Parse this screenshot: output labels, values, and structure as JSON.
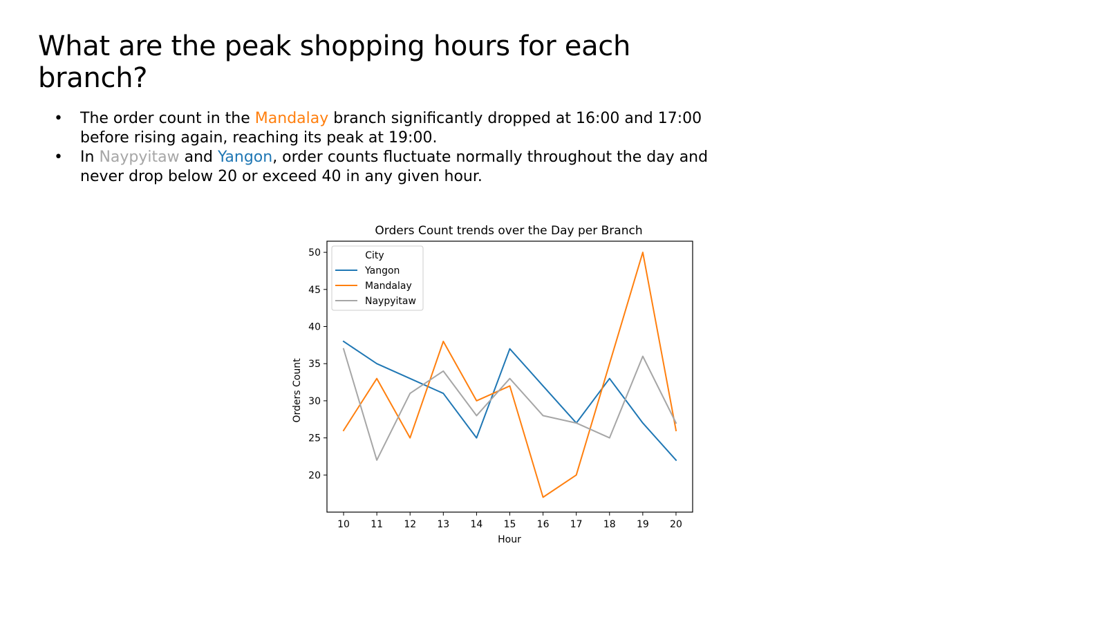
{
  "slide": {
    "title": "What are the peak shopping hours for each branch?",
    "bullets": [
      {
        "marker": "•",
        "before": "The order count in the ",
        "highlight": "Mandalay",
        "after": " branch significantly dropped at 16:00 and 17:00 before rising again, reaching its peak at 19:00."
      },
      {
        "marker": "•",
        "before": "In ",
        "highlight1": "Naypyitaw",
        "middle": " and ",
        "highlight2": "Yangon",
        "after": ", order counts fluctuate normally throughout the day and never drop below 20 or exceed 40 in any given hour."
      }
    ],
    "colors": {
      "mandalay": "#ff7f0e",
      "naypyitaw": "#a6a6a6",
      "yangon": "#1f77b4"
    }
  },
  "chart_data": {
    "type": "line",
    "title": "Orders Count trends over the Day per Branch",
    "xlabel": "Hour",
    "ylabel": "Orders Count",
    "x": [
      10,
      11,
      12,
      13,
      14,
      15,
      16,
      17,
      18,
      19,
      20
    ],
    "xlim": [
      9.5,
      20.5
    ],
    "ylim": [
      15,
      51.5
    ],
    "yticks": [
      20,
      25,
      30,
      35,
      40,
      45,
      50
    ],
    "grid": false,
    "legend": {
      "title": "City",
      "placement": "upper-left"
    },
    "series": [
      {
        "name": "Yangon",
        "color": "#1f77b4",
        "values": [
          38,
          35,
          33,
          31,
          25,
          37,
          32,
          27,
          33,
          27,
          22
        ]
      },
      {
        "name": "Mandalay",
        "color": "#ff7f0e",
        "values": [
          26,
          33,
          25,
          38,
          30,
          32,
          17,
          20,
          35,
          50,
          26
        ]
      },
      {
        "name": "Naypyitaw",
        "color": "#a6a6a6",
        "values": [
          37,
          22,
          31,
          34,
          28,
          33,
          28,
          27,
          25,
          36,
          27
        ]
      }
    ]
  }
}
